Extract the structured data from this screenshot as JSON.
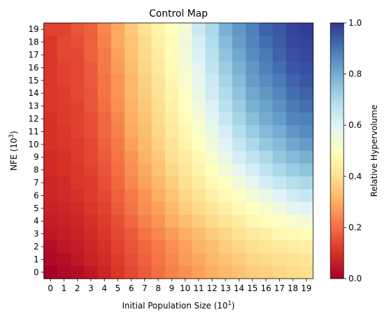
{
  "chart_data": {
    "type": "heatmap",
    "title": "Control Map",
    "xlabel_text": "Initial Population Size (10",
    "xlabel_exp": "1",
    "ylabel_text": "NFE (10",
    "ylabel_exp": "3",
    "colorbar_label": "Relative Hypervolume",
    "colormap": "RdYlBu",
    "vmin": 0.0,
    "vmax": 1.0,
    "x_ticks": [
      "0",
      "1",
      "2",
      "3",
      "4",
      "5",
      "6",
      "7",
      "8",
      "9",
      "10",
      "11",
      "12",
      "13",
      "14",
      "15",
      "16",
      "17",
      "18",
      "19"
    ],
    "y_ticks": [
      "0",
      "1",
      "2",
      "3",
      "4",
      "5",
      "6",
      "7",
      "8",
      "9",
      "10",
      "11",
      "12",
      "13",
      "14",
      "15",
      "16",
      "17",
      "18",
      "19"
    ],
    "colorbar_ticks": [
      "0.0",
      "0.2",
      "0.4",
      "0.6",
      "0.8",
      "1.0"
    ],
    "rows_top_to_bottom": [
      [
        0.13,
        0.13,
        0.16,
        0.18,
        0.24,
        0.29,
        0.35,
        0.41,
        0.46,
        0.5,
        0.54,
        0.64,
        0.7,
        0.79,
        0.84,
        0.88,
        0.93,
        0.95,
        0.98,
        0.99
      ],
      [
        0.11,
        0.14,
        0.15,
        0.18,
        0.23,
        0.29,
        0.34,
        0.39,
        0.45,
        0.49,
        0.55,
        0.62,
        0.69,
        0.77,
        0.83,
        0.87,
        0.91,
        0.94,
        0.97,
        0.98
      ],
      [
        0.11,
        0.14,
        0.14,
        0.18,
        0.22,
        0.28,
        0.34,
        0.39,
        0.44,
        0.49,
        0.54,
        0.61,
        0.67,
        0.75,
        0.81,
        0.86,
        0.89,
        0.93,
        0.96,
        0.97
      ],
      [
        0.11,
        0.13,
        0.14,
        0.17,
        0.22,
        0.27,
        0.33,
        0.38,
        0.43,
        0.48,
        0.53,
        0.59,
        0.66,
        0.73,
        0.79,
        0.84,
        0.88,
        0.91,
        0.95,
        0.96
      ],
      [
        0.11,
        0.13,
        0.14,
        0.17,
        0.21,
        0.26,
        0.32,
        0.37,
        0.42,
        0.47,
        0.52,
        0.58,
        0.64,
        0.71,
        0.77,
        0.83,
        0.86,
        0.89,
        0.93,
        0.95
      ],
      [
        0.11,
        0.12,
        0.14,
        0.16,
        0.21,
        0.26,
        0.32,
        0.36,
        0.41,
        0.46,
        0.51,
        0.57,
        0.63,
        0.69,
        0.75,
        0.81,
        0.84,
        0.87,
        0.91,
        0.93
      ],
      [
        0.11,
        0.12,
        0.13,
        0.16,
        0.2,
        0.25,
        0.31,
        0.35,
        0.4,
        0.45,
        0.5,
        0.55,
        0.61,
        0.67,
        0.73,
        0.79,
        0.82,
        0.85,
        0.89,
        0.91
      ],
      [
        0.1,
        0.12,
        0.13,
        0.15,
        0.19,
        0.24,
        0.3,
        0.34,
        0.39,
        0.44,
        0.49,
        0.53,
        0.59,
        0.65,
        0.71,
        0.76,
        0.8,
        0.83,
        0.87,
        0.88
      ],
      [
        0.1,
        0.11,
        0.13,
        0.15,
        0.19,
        0.23,
        0.29,
        0.33,
        0.38,
        0.43,
        0.47,
        0.52,
        0.57,
        0.62,
        0.68,
        0.73,
        0.77,
        0.8,
        0.84,
        0.86
      ],
      [
        0.1,
        0.11,
        0.12,
        0.14,
        0.18,
        0.22,
        0.28,
        0.32,
        0.37,
        0.41,
        0.46,
        0.5,
        0.55,
        0.6,
        0.65,
        0.7,
        0.74,
        0.77,
        0.81,
        0.83
      ],
      [
        0.09,
        0.1,
        0.12,
        0.14,
        0.17,
        0.21,
        0.26,
        0.31,
        0.35,
        0.4,
        0.44,
        0.48,
        0.53,
        0.57,
        0.62,
        0.66,
        0.7,
        0.74,
        0.77,
        0.79
      ],
      [
        0.09,
        0.1,
        0.11,
        0.13,
        0.16,
        0.2,
        0.25,
        0.29,
        0.34,
        0.38,
        0.42,
        0.46,
        0.5,
        0.54,
        0.58,
        0.62,
        0.66,
        0.7,
        0.73,
        0.75
      ],
      [
        0.08,
        0.09,
        0.11,
        0.12,
        0.15,
        0.19,
        0.24,
        0.28,
        0.32,
        0.36,
        0.4,
        0.44,
        0.48,
        0.51,
        0.55,
        0.58,
        0.62,
        0.65,
        0.68,
        0.7
      ],
      [
        0.08,
        0.09,
        0.1,
        0.12,
        0.14,
        0.18,
        0.22,
        0.26,
        0.3,
        0.34,
        0.38,
        0.41,
        0.45,
        0.48,
        0.51,
        0.54,
        0.57,
        0.6,
        0.63,
        0.65
      ],
      [
        0.07,
        0.08,
        0.09,
        0.11,
        0.13,
        0.17,
        0.21,
        0.25,
        0.28,
        0.32,
        0.36,
        0.39,
        0.42,
        0.45,
        0.48,
        0.5,
        0.53,
        0.55,
        0.58,
        0.6
      ],
      [
        0.06,
        0.07,
        0.08,
        0.1,
        0.12,
        0.15,
        0.19,
        0.23,
        0.26,
        0.3,
        0.33,
        0.36,
        0.39,
        0.42,
        0.44,
        0.47,
        0.49,
        0.51,
        0.53,
        0.54
      ],
      [
        0.05,
        0.06,
        0.07,
        0.09,
        0.11,
        0.14,
        0.17,
        0.21,
        0.24,
        0.27,
        0.3,
        0.33,
        0.36,
        0.38,
        0.41,
        0.43,
        0.45,
        0.47,
        0.48,
        0.49
      ],
      [
        0.03,
        0.05,
        0.06,
        0.08,
        0.1,
        0.13,
        0.16,
        0.19,
        0.22,
        0.25,
        0.28,
        0.31,
        0.33,
        0.36,
        0.38,
        0.4,
        0.42,
        0.43,
        0.44,
        0.45
      ],
      [
        0.02,
        0.03,
        0.05,
        0.07,
        0.09,
        0.12,
        0.15,
        0.18,
        0.21,
        0.24,
        0.27,
        0.29,
        0.32,
        0.34,
        0.36,
        0.38,
        0.39,
        0.4,
        0.41,
        0.42
      ],
      [
        0.0,
        0.02,
        0.03,
        0.05,
        0.08,
        0.11,
        0.14,
        0.17,
        0.2,
        0.23,
        0.25,
        0.28,
        0.3,
        0.32,
        0.34,
        0.36,
        0.37,
        0.38,
        0.39,
        0.4
      ]
    ]
  }
}
